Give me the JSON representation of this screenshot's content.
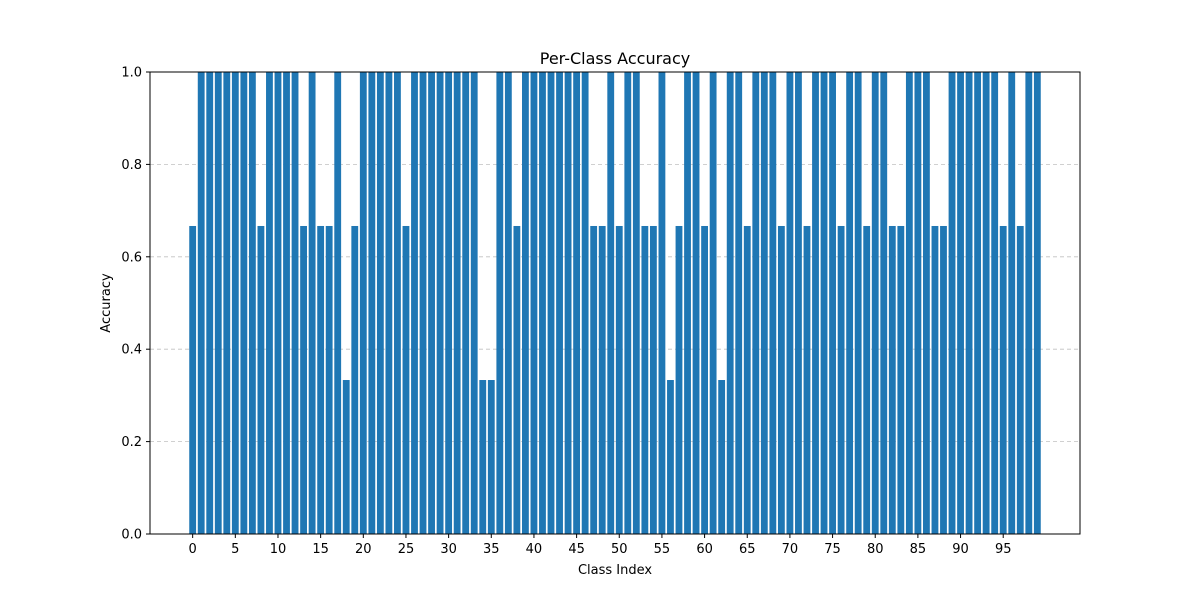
{
  "chart_data": {
    "type": "bar",
    "title": "Per-Class Accuracy",
    "xlabel": "Class Index",
    "ylabel": "Accuracy",
    "x": [
      0,
      1,
      2,
      3,
      4,
      5,
      6,
      7,
      8,
      9,
      10,
      11,
      12,
      13,
      14,
      15,
      16,
      17,
      18,
      19,
      20,
      21,
      22,
      23,
      24,
      25,
      26,
      27,
      28,
      29,
      30,
      31,
      32,
      33,
      34,
      35,
      36,
      37,
      38,
      39,
      40,
      41,
      42,
      43,
      44,
      45,
      46,
      47,
      48,
      49,
      50,
      51,
      52,
      53,
      54,
      55,
      56,
      57,
      58,
      59,
      60,
      61,
      62,
      63,
      64,
      65,
      66,
      67,
      68,
      69,
      70,
      71,
      72,
      73,
      74,
      75,
      76,
      77,
      78,
      79,
      80,
      81,
      82,
      83,
      84,
      85,
      86,
      87,
      88,
      89,
      90,
      91,
      92,
      93,
      94,
      95,
      96,
      97,
      98,
      99
    ],
    "values": [
      0.6667,
      1,
      1,
      1,
      1,
      1,
      1,
      1,
      0.6667,
      1,
      1,
      1,
      1,
      0.6667,
      1,
      0.6667,
      0.6667,
      1,
      0.3333,
      0.6667,
      1,
      1,
      1,
      1,
      1,
      0.6667,
      1,
      1,
      1,
      1,
      1,
      1,
      1,
      1,
      0.3333,
      0.3333,
      1,
      1,
      0.6667,
      1,
      1,
      1,
      1,
      1,
      1,
      1,
      1,
      0.6667,
      0.6667,
      1,
      0.6667,
      1,
      1,
      0.6667,
      0.6667,
      1,
      0.3333,
      0.6667,
      1,
      1,
      0.6667,
      1,
      0.3333,
      1,
      1,
      0.6667,
      1,
      1,
      1,
      0.6667,
      1,
      1,
      0.6667,
      1,
      1,
      1,
      0.6667,
      1,
      1,
      0.6667,
      1,
      1,
      0.6667,
      0.6667,
      1,
      1,
      1,
      0.6667,
      0.6667,
      1,
      1,
      1,
      1,
      1,
      1,
      0.6667,
      1,
      0.6667,
      1,
      1
    ],
    "ylim": [
      0,
      1.0
    ],
    "xticks": [
      0,
      5,
      10,
      15,
      20,
      25,
      30,
      35,
      40,
      45,
      50,
      55,
      60,
      65,
      70,
      75,
      80,
      85,
      90,
      95
    ],
    "yticks": [
      0.0,
      0.2,
      0.4,
      0.6,
      0.8,
      1.0
    ],
    "grid": "y-dashed",
    "bar_color": "#1f77b4",
    "grid_color": "#c0c0c0"
  }
}
